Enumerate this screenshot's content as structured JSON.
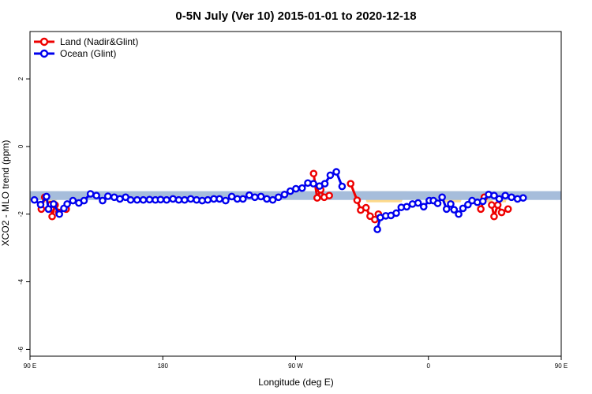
{
  "chart_data": {
    "type": "line",
    "title": "0-5N July (Ver 10)   2015-01-01 to 2020-12-18",
    "xlabel": "Longitude (deg E)",
    "ylabel": "XCO2 - MLO trend (ppm)",
    "xlim": [
      90,
      450
    ],
    "ylim": [
      -6.2,
      3.4
    ],
    "xticks": [
      {
        "value": 90,
        "label": "90 E"
      },
      {
        "value": 180,
        "label": "180"
      },
      {
        "value": 270,
        "label": "90 W"
      },
      {
        "value": 360,
        "label": "0"
      },
      {
        "value": 450,
        "label": "90 E"
      }
    ],
    "yticks": [
      {
        "value": 2,
        "label": "2"
      },
      {
        "value": 0,
        "label": "0"
      },
      {
        "value": -2,
        "label": "-2"
      },
      {
        "value": -4,
        "label": "-4"
      },
      {
        "value": -6,
        "label": "-6"
      }
    ],
    "legend_position": "top-left",
    "band": {
      "y_top": -1.32,
      "y_bottom": -1.58,
      "color": "#a6bddb"
    },
    "land_shading": {
      "color": "#fdd98a",
      "regions": [
        [
          97,
          106
        ],
        [
          100,
          110
        ],
        [
          315,
          345
        ],
        [
          367,
          385
        ],
        [
          398,
          405
        ],
        [
          408,
          414
        ]
      ]
    },
    "series": [
      {
        "name": "Land (Nadir&Glint)",
        "color": "#ee0000",
        "segments": [
          [
            [
              97.7,
              -1.85
            ],
            [
              100.0,
              -1.5
            ]
          ],
          [
            [
              104.0,
              -1.72
            ],
            [
              105.0,
              -2.07
            ],
            [
              107.0,
              -1.73
            ],
            [
              109.5,
              -1.95
            ],
            [
              114.5,
              -1.85
            ]
          ],
          [
            [
              282.2,
              -0.8
            ],
            [
              284.6,
              -1.52
            ],
            [
              287.0,
              -1.28
            ],
            [
              289.4,
              -1.5
            ],
            [
              292.8,
              -1.45
            ]
          ],
          [
            [
              307.3,
              -1.1
            ],
            [
              311.7,
              -1.59
            ],
            [
              314.1,
              -1.88
            ],
            [
              317.7,
              -1.81
            ],
            [
              320.5,
              -2.06
            ],
            [
              323.7,
              -2.16
            ],
            [
              326.1,
              -2.0
            ]
          ],
          [
            [
              395.5,
              -1.85
            ],
            [
              397.9,
              -1.5
            ]
          ],
          [
            [
              402.9,
              -1.73
            ],
            [
              404.5,
              -2.07
            ],
            [
              407.0,
              -1.73
            ],
            [
              409.6,
              -1.95
            ],
            [
              414.0,
              -1.85
            ]
          ]
        ]
      },
      {
        "name": "Ocean (Glint)",
        "color": "#0000ee",
        "segments": [
          [
            [
              93.0,
              -1.58
            ],
            [
              97.2,
              -1.72
            ],
            [
              101.2,
              -1.48
            ],
            [
              102.5,
              -1.85
            ],
            [
              106.0,
              -1.7
            ],
            [
              109.9,
              -2.0
            ],
            [
              113.0,
              -1.83
            ],
            [
              115.2,
              -1.7
            ],
            [
              119.1,
              -1.6
            ],
            [
              123.1,
              -1.67
            ],
            [
              126.6,
              -1.6
            ],
            [
              131.0,
              -1.4
            ],
            [
              135.0,
              -1.45
            ],
            [
              139.2,
              -1.6
            ],
            [
              142.8,
              -1.47
            ],
            [
              147.1,
              -1.5
            ],
            [
              150.9,
              -1.55
            ],
            [
              154.8,
              -1.5
            ],
            [
              158.2,
              -1.58
            ],
            [
              162.6,
              -1.58
            ],
            [
              166.8,
              -1.58
            ],
            [
              171.0,
              -1.57
            ],
            [
              175.0,
              -1.58
            ],
            [
              178.5,
              -1.57
            ],
            [
              182.6,
              -1.58
            ],
            [
              186.9,
              -1.55
            ],
            [
              190.8,
              -1.58
            ],
            [
              194.8,
              -1.58
            ],
            [
              198.9,
              -1.55
            ],
            [
              202.9,
              -1.58
            ],
            [
              206.7,
              -1.6
            ],
            [
              210.5,
              -1.58
            ],
            [
              214.6,
              -1.55
            ],
            [
              218.4,
              -1.55
            ],
            [
              222.6,
              -1.6
            ],
            [
              226.7,
              -1.48
            ],
            [
              230.5,
              -1.55
            ],
            [
              234.3,
              -1.55
            ],
            [
              238.6,
              -1.44
            ],
            [
              242.4,
              -1.5
            ],
            [
              246.5,
              -1.48
            ],
            [
              250.5,
              -1.55
            ],
            [
              254.5,
              -1.58
            ],
            [
              258.4,
              -1.5
            ],
            [
              262.5,
              -1.42
            ],
            [
              266.4,
              -1.32
            ],
            [
              270.2,
              -1.25
            ],
            [
              274.4,
              -1.23
            ],
            [
              278.3,
              -1.08
            ],
            [
              282.1,
              -1.1
            ],
            [
              286.2,
              -1.17
            ],
            [
              289.8,
              -1.1
            ],
            [
              293.5,
              -0.85
            ],
            [
              297.6,
              -0.75
            ],
            [
              301.5,
              -1.18
            ]
          ],
          [
            [
              325.4,
              -2.45
            ],
            [
              327.4,
              -2.1
            ],
            [
              331.1,
              -2.05
            ],
            [
              334.6,
              -2.04
            ],
            [
              338.2,
              -1.97
            ],
            [
              341.6,
              -1.8
            ],
            [
              345.3,
              -1.78
            ],
            [
              349.2,
              -1.7
            ],
            [
              353.0,
              -1.67
            ],
            [
              356.8,
              -1.78
            ],
            [
              360.6,
              -1.6
            ],
            [
              363.4,
              -1.6
            ],
            [
              366.3,
              -1.68
            ],
            [
              369.3,
              -1.5
            ],
            [
              372.3,
              -1.85
            ],
            [
              375.1,
              -1.7
            ],
            [
              377.4,
              -1.87
            ],
            [
              380.5,
              -2.0
            ],
            [
              383.4,
              -1.83
            ],
            [
              386.8,
              -1.72
            ],
            [
              389.6,
              -1.6
            ],
            [
              393.2,
              -1.65
            ],
            [
              396.9,
              -1.62
            ],
            [
              400.8,
              -1.42
            ],
            [
              404.5,
              -1.45
            ],
            [
              408.0,
              -1.55
            ],
            [
              412.1,
              -1.45
            ],
            [
              416.3,
              -1.5
            ],
            [
              420.4,
              -1.55
            ],
            [
              424.2,
              -1.52
            ]
          ]
        ]
      }
    ]
  }
}
